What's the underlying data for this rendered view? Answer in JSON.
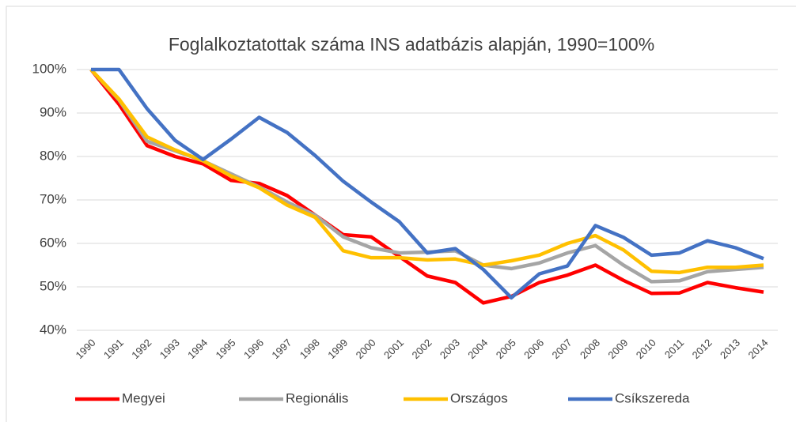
{
  "chart_data": {
    "type": "line",
    "title": "Foglalkoztatottak száma INS adatbázis alapján, 1990=100%",
    "categories": [
      "1990",
      "1991",
      "1992",
      "1993",
      "1994",
      "1995",
      "1996",
      "1997",
      "1998",
      "1999",
      "2000",
      "2001",
      "2002",
      "2003",
      "2004",
      "2005",
      "2006",
      "2007",
      "2008",
      "2009",
      "2010",
      "2011",
      "2012",
      "2013",
      "2014"
    ],
    "series": [
      {
        "name": "Megyei",
        "color": "#ff0000",
        "values": [
          100,
          92,
          82.5,
          80,
          78.3,
          74.5,
          73.8,
          71,
          66.5,
          62,
          61.5,
          57,
          52.5,
          51,
          46.3,
          47.8,
          51,
          52.7,
          55,
          51.5,
          48.5,
          48.6,
          51,
          49.8,
          48.8
        ]
      },
      {
        "name": "Regionális",
        "color": "#a5a5a5",
        "values": [
          100,
          93,
          83.5,
          81.3,
          79,
          76,
          73,
          69.5,
          66.5,
          61.5,
          59,
          57.8,
          58,
          58.3,
          55,
          54.2,
          55.5,
          57.8,
          59.5,
          55,
          51.2,
          51.4,
          53.5,
          54,
          54.5
        ]
      },
      {
        "name": "Országos",
        "color": "#ffc000",
        "values": [
          100,
          93.2,
          84.5,
          81.5,
          79,
          75.5,
          72.8,
          68.8,
          66,
          58.3,
          56.7,
          56.7,
          56.2,
          56.4,
          55,
          56,
          57.3,
          60,
          61.8,
          58.5,
          53.6,
          53.3,
          54.5,
          54.5,
          55
        ]
      },
      {
        "name": "Csíkszereda",
        "color": "#4472c4",
        "values": [
          100,
          100,
          91,
          83.7,
          79.3,
          84,
          89,
          85.5,
          80.2,
          74.3,
          69.5,
          65,
          57.8,
          58.8,
          54,
          47.5,
          53,
          54.8,
          64.1,
          61.4,
          57.3,
          57.8,
          60.6,
          59,
          56.5
        ]
      }
    ],
    "ylim": [
      40,
      100
    ],
    "yticks": [
      {
        "value": 40,
        "label": "40%"
      },
      {
        "value": 50,
        "label": "50%"
      },
      {
        "value": 60,
        "label": "60%"
      },
      {
        "value": 70,
        "label": "70%"
      },
      {
        "value": 80,
        "label": "80%"
      },
      {
        "value": 90,
        "label": "90%"
      },
      {
        "value": 100,
        "label": "100%"
      }
    ],
    "grid": true,
    "legend": "bottom"
  }
}
